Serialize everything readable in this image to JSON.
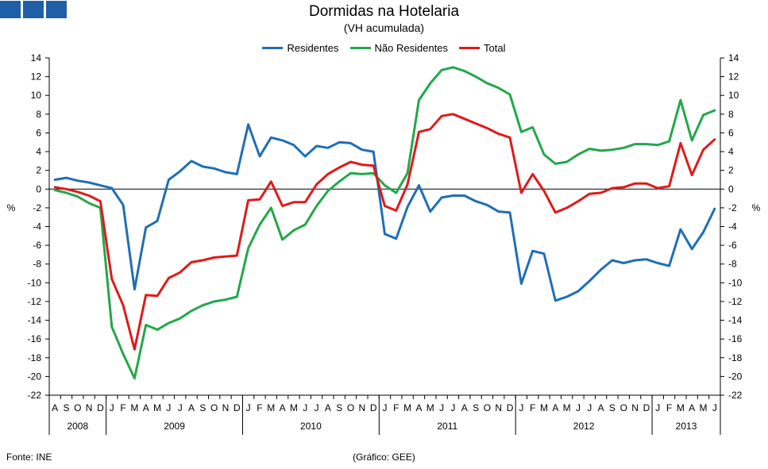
{
  "header": {
    "title": "Dormidas na Hotelaria",
    "subtitle": "(VH acumulada)"
  },
  "footer": {
    "source": "Fonte: INE",
    "credit": "(Gráfico: GEE)"
  },
  "colors": {
    "logo": "#1f5fa8",
    "residentes": "#1f6fb5",
    "nao_residentes": "#22a84a",
    "total": "#e01a1a"
  },
  "chart_data": {
    "type": "line",
    "title": "Dormidas na Hotelaria",
    "subtitle": "(VH acumulada)",
    "ylabel": "%",
    "ylim": [
      -22,
      14
    ],
    "yticks": [
      14,
      12,
      10,
      8,
      6,
      4,
      2,
      0,
      -2,
      -4,
      -6,
      -8,
      -10,
      -12,
      -14,
      -16,
      -18,
      -20,
      -22
    ],
    "legend_position": "top-center",
    "grid": false,
    "months": [
      "A",
      "S",
      "O",
      "N",
      "D",
      "J",
      "F",
      "M",
      "A",
      "M",
      "J",
      "J",
      "A",
      "S",
      "O",
      "N",
      "D",
      "J",
      "F",
      "M",
      "A",
      "M",
      "J",
      "J",
      "A",
      "S",
      "O",
      "N",
      "D",
      "J",
      "F",
      "M",
      "A",
      "M",
      "J",
      "J",
      "A",
      "S",
      "O",
      "N",
      "D",
      "J",
      "F",
      "M",
      "A",
      "M",
      "J",
      "J",
      "A",
      "S",
      "O",
      "N",
      "D",
      "J",
      "F",
      "M",
      "A",
      "M",
      "J"
    ],
    "years": [
      {
        "label": "2008",
        "start": 0,
        "end": 5
      },
      {
        "label": "2009",
        "start": 5,
        "end": 17
      },
      {
        "label": "2010",
        "start": 17,
        "end": 29
      },
      {
        "label": "2011",
        "start": 29,
        "end": 41
      },
      {
        "label": "2012",
        "start": 41,
        "end": 53
      },
      {
        "label": "2013",
        "start": 53,
        "end": 59
      }
    ],
    "series": [
      {
        "name": "Residentes",
        "color": "#1f6fb5",
        "values": [
          1.0,
          1.2,
          0.9,
          0.7,
          0.4,
          0.1,
          -1.7,
          -10.7,
          -4.1,
          -3.4,
          1.0,
          1.9,
          3.0,
          2.4,
          2.2,
          1.8,
          1.6,
          6.9,
          3.5,
          5.5,
          5.2,
          4.7,
          3.5,
          4.6,
          4.4,
          5.0,
          4.9,
          4.2,
          4.0,
          -4.8,
          -5.3,
          -1.9,
          0.4,
          -2.4,
          -0.9,
          -0.7,
          -0.7,
          -1.3,
          -1.7,
          -2.4,
          -2.5,
          -10.1,
          -6.6,
          -6.9,
          -11.9,
          -11.5,
          -10.9,
          -9.8,
          -8.6,
          -7.6,
          -7.9,
          -7.6,
          -7.5,
          -7.9,
          -8.2,
          -4.3,
          -6.4,
          -4.6,
          -2.1
        ]
      },
      {
        "name": "Não Residentes",
        "color": "#22a84a",
        "values": [
          -0.1,
          -0.4,
          -0.8,
          -1.5,
          -2.0,
          -14.7,
          -17.6,
          -20.2,
          -14.5,
          -15.0,
          -14.3,
          -13.8,
          -13.0,
          -12.4,
          -12.0,
          -11.8,
          -11.5,
          -6.3,
          -3.8,
          -2.0,
          -5.4,
          -4.4,
          -3.8,
          -1.8,
          -0.2,
          0.8,
          1.7,
          1.6,
          1.7,
          0.4,
          -0.4,
          1.7,
          9.5,
          11.3,
          12.7,
          13.0,
          12.6,
          12.0,
          11.3,
          10.8,
          10.1,
          6.1,
          6.6,
          3.7,
          2.7,
          2.9,
          3.7,
          4.3,
          4.1,
          4.2,
          4.4,
          4.8,
          4.8,
          4.7,
          5.1,
          9.5,
          5.2,
          7.9,
          8.4
        ]
      },
      {
        "name": "Total",
        "color": "#e01a1a",
        "values": [
          0.2,
          0.0,
          -0.3,
          -0.7,
          -1.3,
          -9.6,
          -12.4,
          -17.1,
          -11.3,
          -11.4,
          -9.5,
          -8.9,
          -7.8,
          -7.6,
          -7.3,
          -7.2,
          -7.1,
          -1.2,
          -1.1,
          0.8,
          -1.8,
          -1.4,
          -1.4,
          0.5,
          1.6,
          2.3,
          2.9,
          2.6,
          2.5,
          -1.8,
          -2.3,
          0.5,
          6.1,
          6.4,
          7.8,
          8.0,
          7.5,
          7.0,
          6.5,
          5.9,
          5.5,
          -0.4,
          1.6,
          -0.2,
          -2.5,
          -2.0,
          -1.3,
          -0.5,
          -0.4,
          0.1,
          0.2,
          0.6,
          0.6,
          0.1,
          0.3,
          4.9,
          1.5,
          4.2,
          5.3
        ]
      }
    ]
  }
}
